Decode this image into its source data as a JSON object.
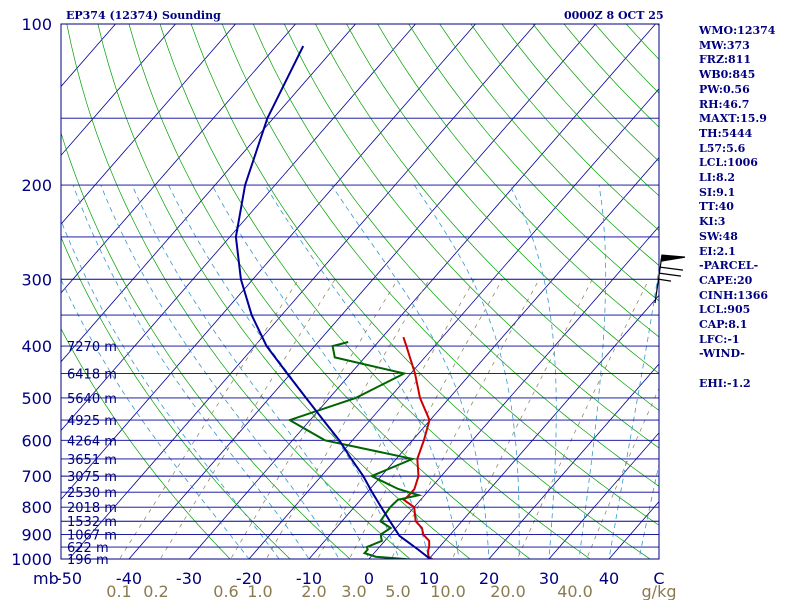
{
  "header": {
    "left": "EP374 (12374) Sounding",
    "right": "0000Z  8 OCT 25"
  },
  "indices": [
    "WMO:12374",
    "MW:373",
    "FRZ:811",
    "WB0:845",
    "PW:0.56",
    "RH:46.7",
    "MAXT:15.9",
    "TH:5444",
    "L57:5.6",
    "LCL:1006",
    "LI:8.2",
    "SI:9.1",
    "TT:40",
    "KI:3",
    "SW:48",
    "EI:2.1",
    "-PARCEL-",
    "CAPE:20",
    "CINH:1366",
    "LCL:905",
    "CAP:8.1",
    "LFC:-1",
    "-WIND-",
    "",
    "EHI:-1.2"
  ],
  "chart_data": {
    "type": "line",
    "title": "EP374 (12374) Sounding",
    "ylabel": "mb",
    "ylog": true,
    "ylim": [
      1000,
      100
    ],
    "xlim": [
      -50,
      50
    ],
    "xlabel_unit": "C",
    "pressure_ticks": [
      "100",
      "200",
      "300",
      "400",
      "500",
      "600",
      "700",
      "800",
      "900",
      "1000"
    ],
    "temp_ticks": [
      "-50",
      "-40",
      "-30",
      "-20",
      "-10",
      "0",
      "10",
      "20",
      "30",
      "40",
      "C"
    ],
    "mixing_ratio_ticks": [
      "0.1",
      "0.2",
      "0.6",
      "1.0",
      "2.0",
      "3.0",
      "5.0",
      "10.0",
      "20.0",
      "40.0",
      "g/kg"
    ],
    "height_labels": [
      {
        "p": 400,
        "label": "7270 m"
      },
      {
        "p": 450,
        "label": "6418 m"
      },
      {
        "p": 500,
        "label": "5640 m"
      },
      {
        "p": 550,
        "label": "4925 m"
      },
      {
        "p": 600,
        "label": "4264 m"
      },
      {
        "p": 650,
        "label": "3651 m"
      },
      {
        "p": 700,
        "label": "3075 m"
      },
      {
        "p": 750,
        "label": "2530 m"
      },
      {
        "p": 800,
        "label": "2018 m"
      },
      {
        "p": 850,
        "label": "1532 m"
      },
      {
        "p": 900,
        "label": "1067 m"
      },
      {
        "p": 950,
        "label": "622 m"
      },
      {
        "p": 1000,
        "label": "196 m"
      }
    ],
    "series": [
      {
        "color": "#cc0000",
        "points": [
          [
            1006,
            10.7
          ],
          [
            1000,
            10.5
          ],
          [
            990,
            9.6
          ],
          [
            975,
            9.0
          ],
          [
            960,
            8.5
          ],
          [
            950,
            8.3
          ],
          [
            925,
            7.4
          ],
          [
            900,
            5.5
          ],
          [
            875,
            4.3
          ],
          [
            850,
            2.3
          ],
          [
            800,
            0.0
          ],
          [
            775,
            -2.8
          ],
          [
            760,
            -2.6
          ],
          [
            740,
            -2.6
          ],
          [
            700,
            -3.8
          ],
          [
            650,
            -6.5
          ],
          [
            600,
            -8.1
          ],
          [
            550,
            -10.1
          ],
          [
            500,
            -14.9
          ],
          [
            450,
            -19.3
          ],
          [
            400,
            -24.7
          ],
          [
            385,
            -26.5
          ]
        ]
      },
      {
        "color": "#006400",
        "points": [
          [
            1006,
            8.6
          ],
          [
            1000,
            5.9
          ],
          [
            990,
            0.8
          ],
          [
            975,
            -1.6
          ],
          [
            960,
            -1.6
          ],
          [
            950,
            -2.1
          ],
          [
            925,
            -0.5
          ],
          [
            900,
            -1.6
          ],
          [
            875,
            -0.9
          ],
          [
            850,
            -3.6
          ],
          [
            800,
            -4.0
          ],
          [
            775,
            -3.8
          ],
          [
            760,
            -1.0
          ],
          [
            740,
            -5.3
          ],
          [
            700,
            -11.6
          ],
          [
            650,
            -7.3
          ],
          [
            600,
            -24.6
          ],
          [
            550,
            -33.4
          ],
          [
            500,
            -25.6
          ],
          [
            450,
            -21.1
          ],
          [
            420,
            -35.0
          ],
          [
            400,
            -37.0
          ],
          [
            393,
            -35.0
          ]
        ]
      },
      {
        "color": "#000099",
        "points": [
          [
            1006,
            10.7
          ],
          [
            960,
            6.8
          ],
          [
            925,
            3.6
          ],
          [
            905,
            1.7
          ],
          [
            850,
            -2.0
          ],
          [
            800,
            -5.5
          ],
          [
            750,
            -9.2
          ],
          [
            700,
            -13.0
          ],
          [
            650,
            -17.5
          ],
          [
            600,
            -22.2
          ],
          [
            550,
            -27.8
          ],
          [
            500,
            -33.9
          ],
          [
            450,
            -40.6
          ],
          [
            400,
            -48.0
          ],
          [
            350,
            -55.0
          ],
          [
            300,
            -62.0
          ],
          [
            250,
            -69.0
          ],
          [
            200,
            -75.0
          ],
          [
            150,
            -81.0
          ],
          [
            110,
            -85.5
          ]
        ]
      }
    ],
    "grid": {
      "isobars": [
        100,
        150,
        200,
        250,
        300,
        350,
        400,
        450,
        500,
        550,
        600,
        650,
        700,
        750,
        800,
        850,
        900,
        950,
        1000
      ],
      "isotherm_step": 10,
      "dry_adiabats_theta_k": [
        250,
        260,
        270,
        280,
        290,
        300,
        310,
        320,
        330,
        340,
        350,
        360,
        370,
        380,
        390,
        400,
        410,
        420,
        430,
        440,
        450,
        460,
        470,
        480,
        490,
        500,
        510,
        520,
        530,
        540,
        550
      ],
      "moist_adiabats_theta_w_c": [
        -20,
        -15,
        -10,
        -5,
        0,
        5,
        10,
        15,
        20,
        25,
        30,
        35,
        40,
        45
      ],
      "mixing_ratios_gkg": [
        0.1,
        0.2,
        0.6,
        1.0,
        2.0,
        3.0,
        5.0,
        10.0,
        20.0,
        40.0
      ],
      "colors": {
        "isobar": "#000099",
        "isotherm": "#000099",
        "dry": "#00a000",
        "moist": "#3399cc",
        "mixing": "#8a7a50",
        "frame": "#000080"
      }
    },
    "wind_barb": {
      "p": 305,
      "speed_kt": 30,
      "from_deg": 270
    }
  }
}
